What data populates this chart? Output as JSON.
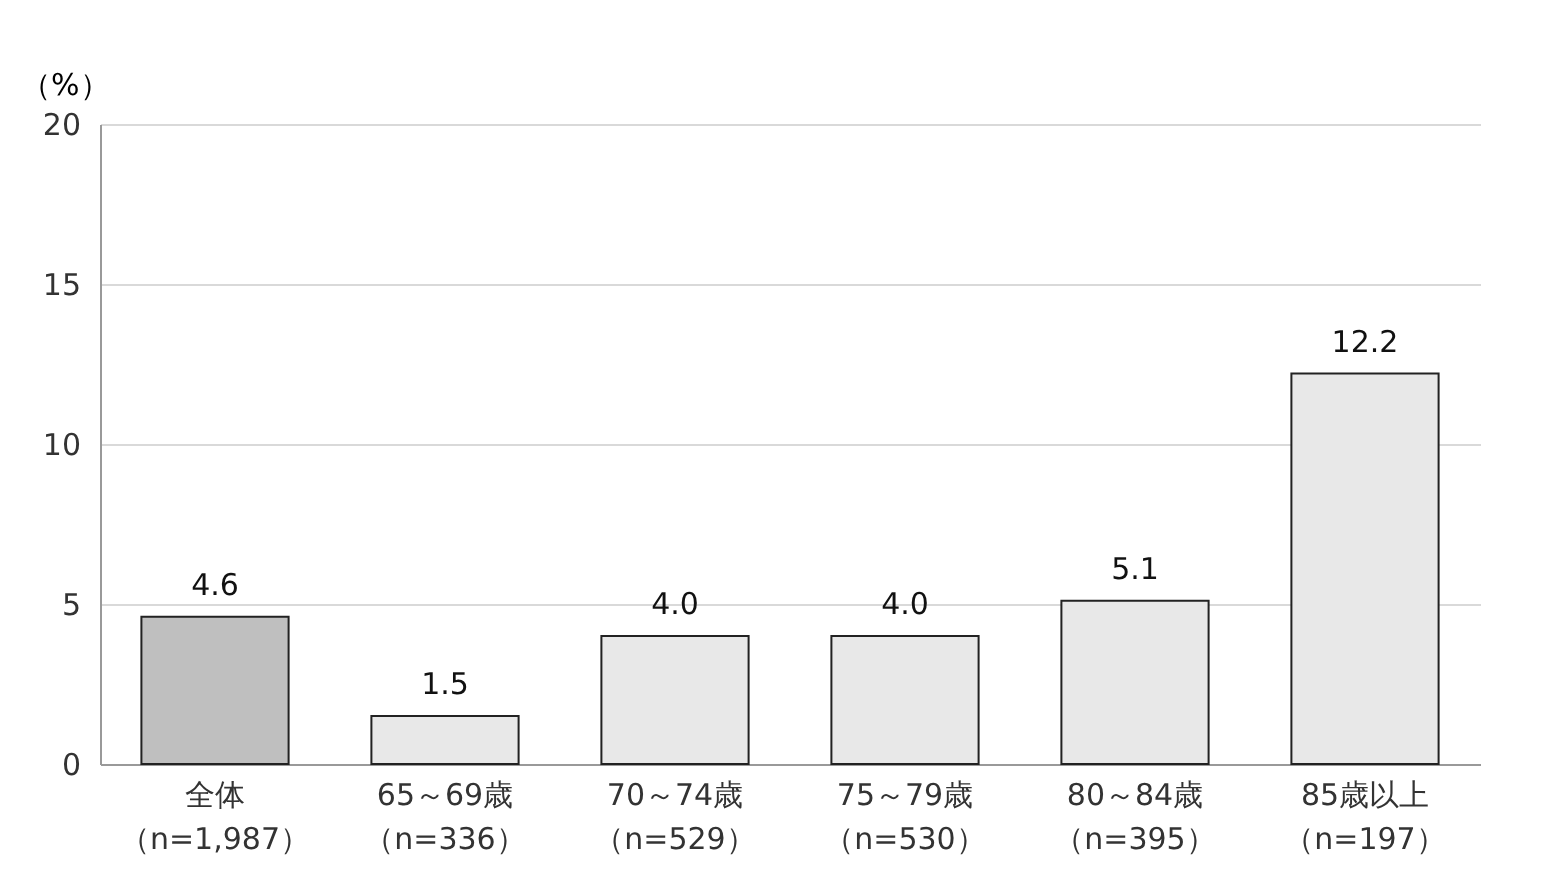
{
  "chart_data": {
    "type": "bar",
    "ylabel": "（%）",
    "categories": [
      "全体（n=1,987）",
      "65～69歳（n=336）",
      "70～74歳（n=529）",
      "75～79歳（n=530）",
      "80～84歳（n=395）",
      "85歳以上（n=197）"
    ],
    "values": [
      4.6,
      1.5,
      4.0,
      4.0,
      5.1,
      12.2
    ],
    "value_labels": [
      "4.6",
      "1.5",
      "4.0",
      "4.0",
      "5.1",
      "12.2"
    ],
    "colors": [
      "#bfbfbf",
      "#e8e8e8",
      "#e8e8e8",
      "#e8e8e8",
      "#e8e8e8",
      "#e8e8e8"
    ],
    "ylim": [
      0,
      20
    ],
    "yticks": [
      0,
      5,
      10,
      15,
      20
    ],
    "grid": "y"
  }
}
